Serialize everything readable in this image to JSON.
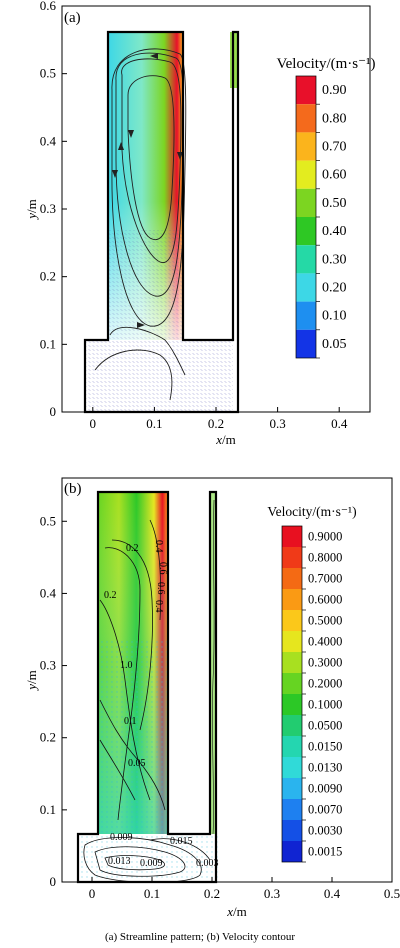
{
  "caption": "(a) Streamline pattern; (b) Velocity contour",
  "chart_data": [
    {
      "type": "contour",
      "panel_label": "(a)",
      "xlabel_var": "x",
      "xlabel_unit": "/m",
      "ylabel_var": "y",
      "ylabel_unit": "/m",
      "xlim": [
        -0.05,
        0.45
      ],
      "ylim": [
        0,
        0.6
      ],
      "xticks": [
        "0",
        "0.1",
        "0.2",
        "0.3",
        "0.4"
      ],
      "xtick_values": [
        0,
        0.1,
        0.2,
        0.3,
        0.4
      ],
      "yticks": [
        "0",
        "0.1",
        "0.2",
        "0.3",
        "0.4",
        "0.5",
        "0.6"
      ],
      "ytick_values": [
        0,
        0.1,
        0.2,
        0.3,
        0.4,
        0.5,
        0.6
      ],
      "legend_title": "Velocity/(m·s⁻¹)",
      "legend_levels": [
        "0.90",
        "0.80",
        "0.70",
        "0.60",
        "0.50",
        "0.40",
        "0.30",
        "0.20",
        "0.10",
        "0.05"
      ],
      "legend_colors": [
        "#e8102a",
        "#f46a1c",
        "#fbb41c",
        "#e3ec1f",
        "#7cd521",
        "#2ec824",
        "#25d9a6",
        "#3dd7e6",
        "#1e8ff0",
        "#1334e6"
      ]
    },
    {
      "type": "contour",
      "panel_label": "(b)",
      "xlabel_var": "x",
      "xlabel_unit": "/m",
      "ylabel_var": "y",
      "ylabel_unit": "/m",
      "xlim": [
        -0.05,
        0.5
      ],
      "ylim": [
        0,
        0.56
      ],
      "xticks": [
        "0",
        "0.1",
        "0.2",
        "0.3",
        "0.4",
        "0.5"
      ],
      "xtick_values": [
        0,
        0.1,
        0.2,
        0.3,
        0.4,
        0.5
      ],
      "yticks": [
        "0",
        "0.1",
        "0.2",
        "0.3",
        "0.4",
        "0.5"
      ],
      "ytick_values": [
        0,
        0.1,
        0.2,
        0.3,
        0.4,
        0.5
      ],
      "legend_title": "Velocity/(m·s⁻¹)",
      "legend_levels": [
        "0.9000",
        "0.8000",
        "0.7000",
        "0.6000",
        "0.5000",
        "0.4000",
        "0.3000",
        "0.2000",
        "0.1000",
        "0.0500",
        "0.0150",
        "0.0130",
        "0.0090",
        "0.0070",
        "0.0030",
        "0.0015"
      ],
      "legend_colors": [
        "#e81020",
        "#f03a18",
        "#f46a14",
        "#fa9a14",
        "#fbc81a",
        "#e6e61e",
        "#a8e020",
        "#66d422",
        "#2cc826",
        "#22cc70",
        "#24d6b0",
        "#30dad8",
        "#2ab4ee",
        "#1e80f0",
        "#1450e6",
        "#1024d2"
      ],
      "contour_labels": [
        "0.2",
        "0.4",
        "0.6",
        "0.6",
        "0.4",
        "0.2",
        "1.0",
        "0.1",
        "0.05",
        "0.009",
        "0.015",
        "0.013",
        "0.009",
        "0.003"
      ]
    }
  ]
}
